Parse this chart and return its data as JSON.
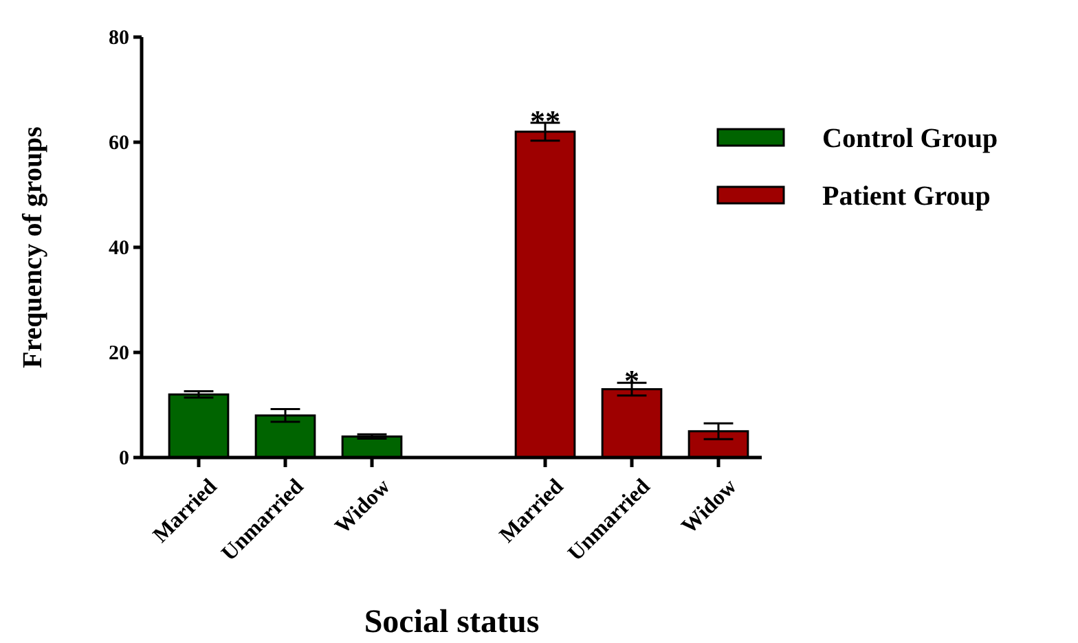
{
  "chart_data": {
    "type": "bar",
    "xlabel": "Social status",
    "ylabel": "Frequency of groups",
    "categories": [
      "Married",
      "Unmarried",
      "Widow",
      "Married",
      "Unmarried",
      "Widow"
    ],
    "series": [
      {
        "name": "Control Group",
        "color": "#006400",
        "values": [
          12,
          8,
          4,
          null,
          null,
          null
        ],
        "errors": [
          0.6,
          1.2,
          0.4,
          null,
          null,
          null
        ]
      },
      {
        "name": "Patient Group",
        "color": "#9e0000",
        "values": [
          null,
          null,
          null,
          62,
          13,
          5
        ],
        "errors": [
          null,
          null,
          null,
          1.7,
          1.2,
          1.5
        ]
      }
    ],
    "ylim": [
      0,
      80
    ],
    "yticks": [
      0,
      20,
      40,
      60,
      80
    ],
    "grid": false,
    "legend": "top right",
    "annotations": [
      "**",
      "*"
    ]
  }
}
